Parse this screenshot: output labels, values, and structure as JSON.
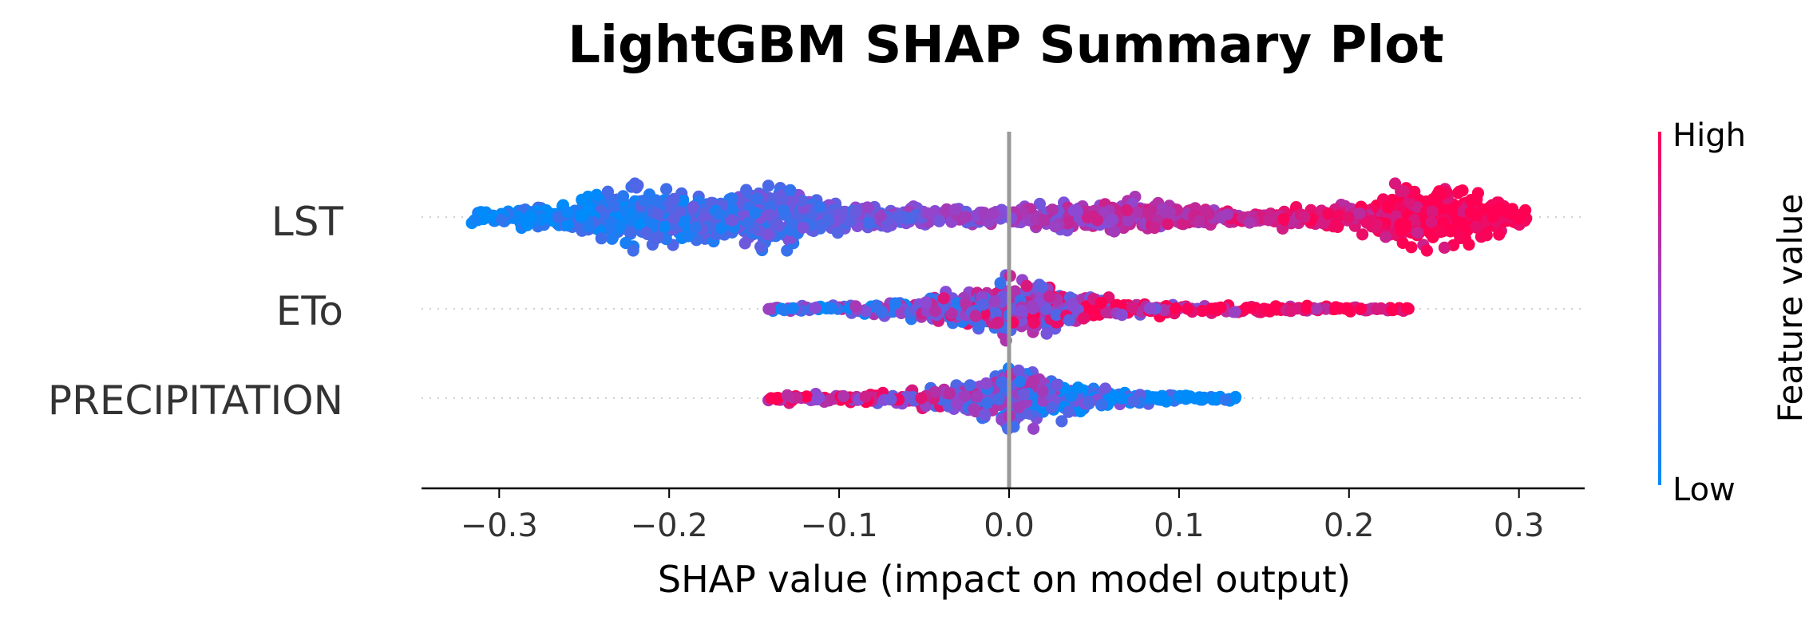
{
  "chart_data": {
    "type": "scatter",
    "subtype": "shap-beeswarm",
    "title": "LightGBM SHAP Summary Plot",
    "xlabel": "SHAP value (impact on model output)",
    "xlim": [
      -0.345,
      0.335
    ],
    "xticks": [
      -0.3,
      -0.2,
      -0.1,
      0.0,
      0.1,
      0.2,
      0.3
    ],
    "xtick_labels": [
      "−0.3",
      "−0.2",
      "−0.1",
      "0.0",
      "0.1",
      "0.2",
      "0.3"
    ],
    "features": [
      "LST",
      "ETo",
      "PRECIPITATION"
    ],
    "series": [
      {
        "feature": "LST",
        "min": -0.315,
        "max": 0.305,
        "density": [
          {
            "x": -0.3,
            "w": 0.2
          },
          {
            "x": -0.26,
            "w": 0.45
          },
          {
            "x": -0.22,
            "w": 0.95
          },
          {
            "x": -0.19,
            "w": 0.7
          },
          {
            "x": -0.16,
            "w": 0.75
          },
          {
            "x": -0.14,
            "w": 0.95
          },
          {
            "x": -0.11,
            "w": 0.5
          },
          {
            "x": -0.07,
            "w": 0.3
          },
          {
            "x": -0.02,
            "w": 0.25
          },
          {
            "x": 0.03,
            "w": 0.4
          },
          {
            "x": 0.08,
            "w": 0.45
          },
          {
            "x": 0.12,
            "w": 0.25
          },
          {
            "x": 0.17,
            "w": 0.25
          },
          {
            "x": 0.21,
            "w": 0.4
          },
          {
            "x": 0.235,
            "w": 0.95
          },
          {
            "x": 0.26,
            "w": 0.9
          },
          {
            "x": 0.29,
            "w": 0.55
          },
          {
            "x": 0.305,
            "w": 0.15
          }
        ],
        "color_trend": "low-to-high"
      },
      {
        "feature": "ETo",
        "min": -0.14,
        "max": 0.235,
        "density": [
          {
            "x": -0.13,
            "w": 0.1
          },
          {
            "x": -0.09,
            "w": 0.15
          },
          {
            "x": -0.05,
            "w": 0.3
          },
          {
            "x": -0.02,
            "w": 0.6
          },
          {
            "x": 0.0,
            "w": 0.95
          },
          {
            "x": 0.02,
            "w": 0.7
          },
          {
            "x": 0.05,
            "w": 0.35
          },
          {
            "x": 0.09,
            "w": 0.18
          },
          {
            "x": 0.15,
            "w": 0.1
          },
          {
            "x": 0.2,
            "w": 0.06
          }
        ],
        "outliers": [
          -0.14,
          -0.125,
          0.105,
          0.12,
          0.15,
          0.165,
          0.175,
          0.19,
          0.198,
          0.235
        ],
        "color_trend": "low-to-high"
      },
      {
        "feature": "PRECIPITATION",
        "min": -0.14,
        "max": 0.133,
        "density": [
          {
            "x": -0.13,
            "w": 0.12
          },
          {
            "x": -0.09,
            "w": 0.15
          },
          {
            "x": -0.05,
            "w": 0.25
          },
          {
            "x": -0.02,
            "w": 0.55
          },
          {
            "x": 0.0,
            "w": 0.95
          },
          {
            "x": 0.02,
            "w": 0.7
          },
          {
            "x": 0.05,
            "w": 0.35
          },
          {
            "x": 0.08,
            "w": 0.18
          },
          {
            "x": 0.11,
            "w": 0.08
          }
        ],
        "outliers": [
          -0.14,
          0.09,
          0.1,
          0.115,
          0.12,
          0.133
        ],
        "color_trend": "high-to-low"
      }
    ],
    "colorbar": {
      "label": "Feature value",
      "high_label": "High",
      "low_label": "Low",
      "high_color": "#ff0052",
      "low_color": "#008bfb"
    },
    "zero_line_color": "#999999",
    "grid": false,
    "legend": "right colorbar"
  }
}
